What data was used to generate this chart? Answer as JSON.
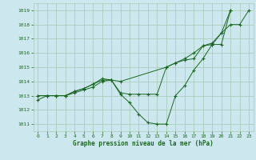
{
  "bg_color": "#cce8ee",
  "grid_color": "#aaccbb",
  "line_color": "#1a6620",
  "xlim": [
    -0.5,
    23.5
  ],
  "ylim": [
    1010.5,
    1019.5
  ],
  "yticks": [
    1011,
    1012,
    1013,
    1014,
    1015,
    1016,
    1017,
    1018,
    1019
  ],
  "xticks": [
    0,
    1,
    2,
    3,
    4,
    5,
    6,
    7,
    8,
    9,
    10,
    11,
    12,
    13,
    14,
    15,
    16,
    17,
    18,
    19,
    20,
    21,
    22,
    23
  ],
  "xlabel": "Graphe pression niveau de la mer (hPa)",
  "series": [
    [
      1012.7,
      1013.0,
      1013.0,
      1013.0,
      1013.2,
      1013.4,
      1013.6,
      1014.0,
      1014.1,
      1013.1,
      1012.5,
      1011.7,
      1011.1,
      1011.0,
      1011.0,
      1013.0,
      1013.7,
      1014.8,
      1015.6,
      1016.6,
      1017.4,
      1018.0,
      1018.0,
      1019.0
    ],
    [
      1013.0,
      1013.0,
      1013.0,
      1013.0,
      1013.3,
      1013.5,
      1013.8,
      1014.1,
      1014.1,
      1014.0,
      null,
      null,
      null,
      null,
      1015.0,
      1015.3,
      1015.6,
      1016.0,
      1016.5,
      1016.7,
      1017.4,
      1019.0,
      null,
      null
    ],
    [
      1013.0,
      1013.0,
      1013.0,
      1013.0,
      1013.3,
      1013.5,
      1013.8,
      1014.2,
      1014.1,
      1013.2,
      1013.1,
      1013.1,
      1013.1,
      1013.1,
      1015.0,
      1015.3,
      1015.5,
      1015.6,
      1016.5,
      1016.6,
      1016.6,
      1019.0,
      null,
      null
    ]
  ]
}
